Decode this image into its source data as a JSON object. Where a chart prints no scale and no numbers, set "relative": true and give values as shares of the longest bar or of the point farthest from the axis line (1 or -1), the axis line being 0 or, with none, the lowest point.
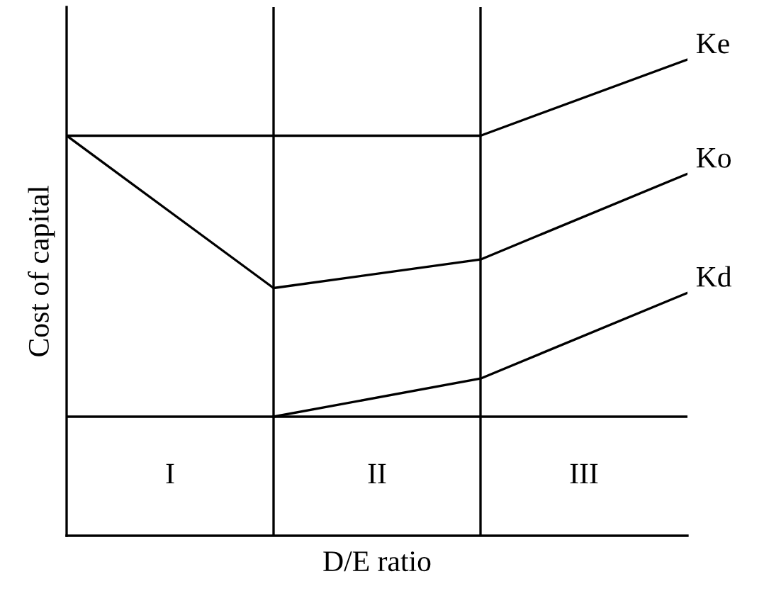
{
  "chart_data": {
    "type": "line",
    "relative": true,
    "xlabel": "D/E ratio",
    "ylabel": "Cost of capital",
    "categories": [
      null,
      null,
      null,
      null
    ],
    "series": [
      {
        "name": "Ke",
        "color": "#000000",
        "values": [
          0.84,
          0.84,
          0.84,
          1.0
        ]
      },
      {
        "name": "Ko",
        "color": "#000000",
        "values": [
          0.84,
          0.52,
          0.58,
          0.76
        ]
      },
      {
        "name": "Kd",
        "color": "#000000",
        "values": [
          null,
          0.25,
          0.33,
          0.51
        ]
      }
    ],
    "ref_lines": [
      {
        "axis": "y",
        "value": 0.25,
        "label": null
      }
    ],
    "annotations": [
      "I",
      "II",
      "III"
    ],
    "legend": false,
    "marker": "none",
    "line_style": "solid"
  }
}
